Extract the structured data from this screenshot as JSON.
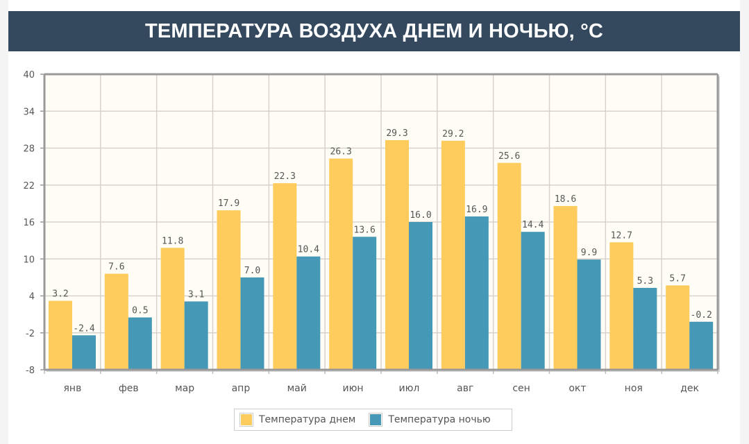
{
  "title": "ТЕМПЕРАТУРА ВОЗДУХА ДНЕМ И НОЧЬЮ, °C",
  "colors": {
    "day": "#fecc5c",
    "night": "#4599b7",
    "header": "#34495e",
    "plot_bg": "#fffdf5"
  },
  "chart_data": {
    "type": "bar",
    "title": "ТЕМПЕРАТУРА ВОЗДУХА ДНЕМ И НОЧЬЮ, °C",
    "xlabel": "",
    "ylabel": "",
    "ylim": [
      -8,
      40
    ],
    "yticks": [
      "40",
      "34",
      "28",
      "22",
      "16",
      "10",
      "4",
      "-2",
      "-8"
    ],
    "ytick_values": [
      40,
      34,
      28,
      22,
      16,
      10,
      4,
      -2,
      -8
    ],
    "grid": true,
    "legend_position": "bottom",
    "categories": [
      "янв",
      "фев",
      "мар",
      "апр",
      "май",
      "июн",
      "июл",
      "авг",
      "сен",
      "окт",
      "ноя",
      "дек"
    ],
    "series": [
      {
        "name": "Температура днем",
        "values": [
          3.2,
          7.6,
          11.8,
          17.9,
          22.3,
          26.3,
          29.3,
          29.2,
          25.6,
          18.6,
          12.7,
          5.7
        ],
        "labels": [
          "3.2",
          "7.6",
          "11.8",
          "17.9",
          "22.3",
          "26.3",
          "29.3",
          "29.2",
          "25.6",
          "18.6",
          "12.7",
          "5.7"
        ]
      },
      {
        "name": "Температура ночью",
        "values": [
          -2.4,
          0.5,
          3.1,
          7.0,
          10.4,
          13.6,
          16.0,
          16.9,
          14.4,
          9.9,
          5.3,
          -0.2
        ],
        "labels": [
          "-2.4",
          "0.5",
          "3.1",
          "7.0",
          "10.4",
          "13.6",
          "16.0",
          "16.9",
          "14.4",
          "9.9",
          "5.3",
          "-0.2"
        ]
      }
    ]
  }
}
